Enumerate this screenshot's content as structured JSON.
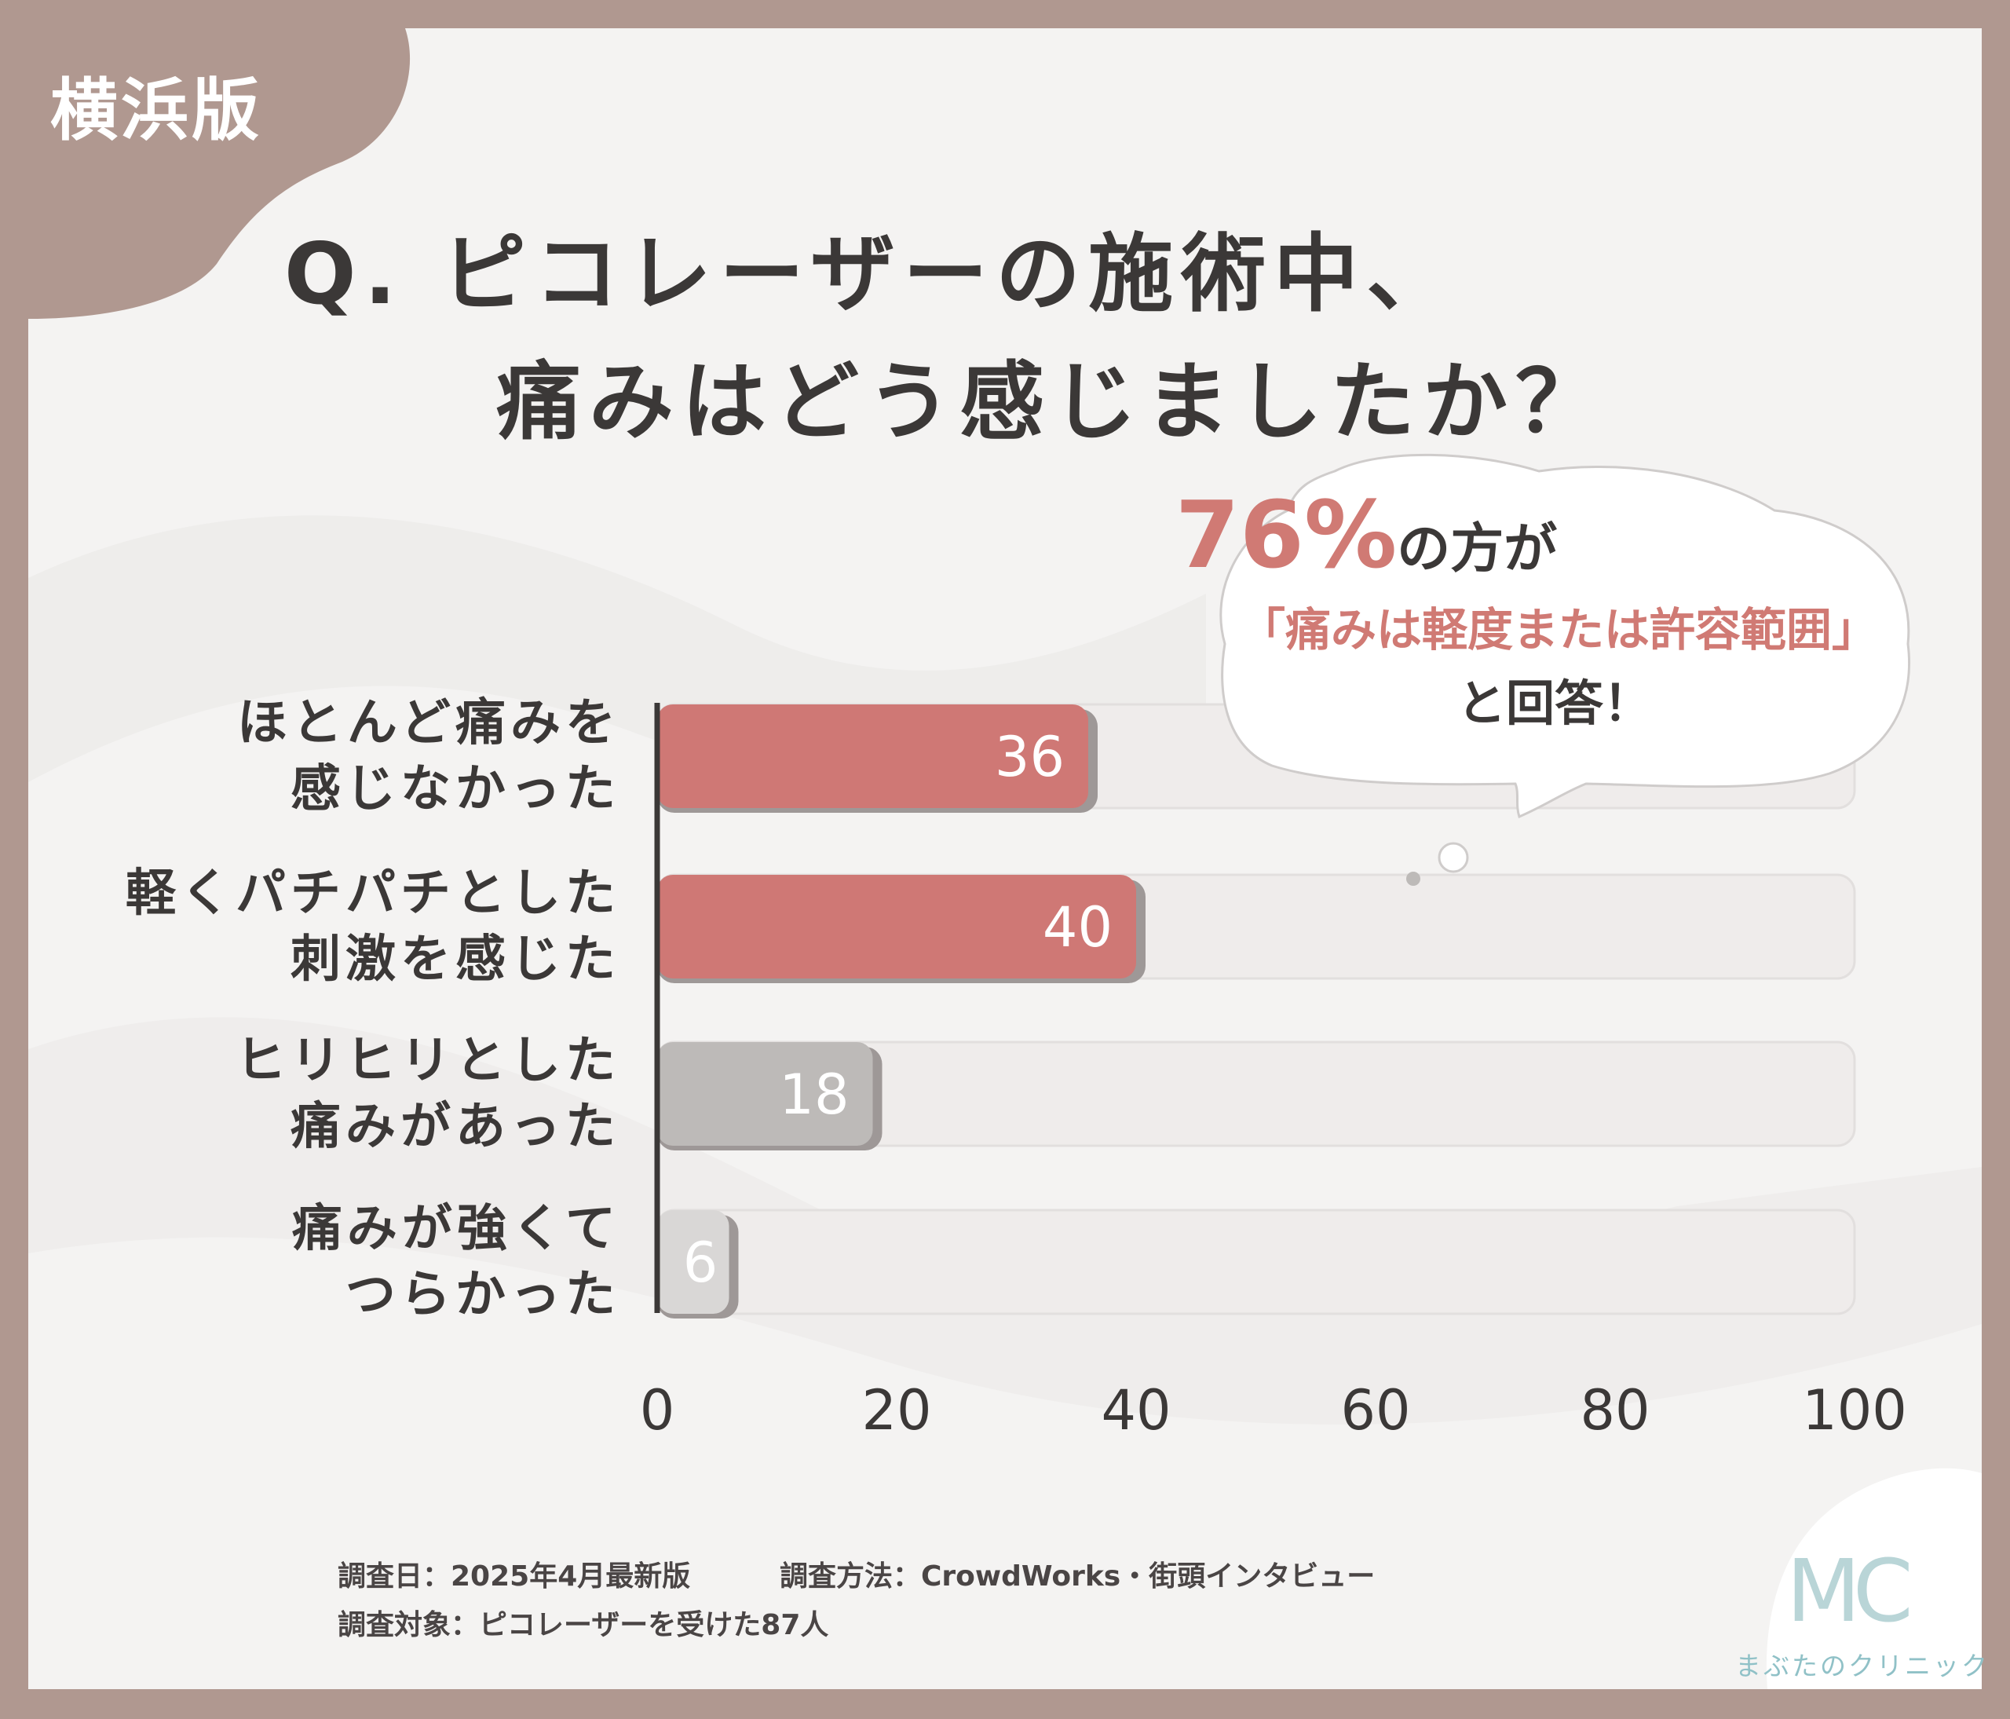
{
  "badge": "横浜版",
  "title": {
    "line1": "Q. ピコレーザーの施術中、",
    "line2": "痛みはどう感じましたか？"
  },
  "callout": {
    "percent": "76%",
    "line1_rest": "の方が",
    "line2": "「痛みは軽度または許容範囲」",
    "line3": "と回答！"
  },
  "chart_data": {
    "type": "bar",
    "orientation": "horizontal",
    "categories": [
      [
        "ほとんど痛みを",
        "感じなかった"
      ],
      [
        "軽くパチパチとした",
        "刺激を感じた"
      ],
      [
        "ヒリヒリとした",
        "痛みがあった"
      ],
      [
        "痛みが強くて",
        "つらかった"
      ]
    ],
    "values": [
      36,
      40,
      18,
      6
    ],
    "xlim": [
      0,
      100
    ],
    "xticks": [
      "0",
      "20",
      "40",
      "60",
      "80",
      "100"
    ],
    "bar_colors": [
      "#cf7875",
      "#cf7875",
      "#bdbab8",
      "#d9d7d6"
    ]
  },
  "notes": {
    "date": "調査日：2025年4月最新版",
    "method": "調査方法：CrowdWorks・街頭インタビュー",
    "target": "調査対象：ピコレーザーを受けた87人"
  },
  "logo": {
    "mark": "MC",
    "name": "まぶたのクリニック"
  }
}
